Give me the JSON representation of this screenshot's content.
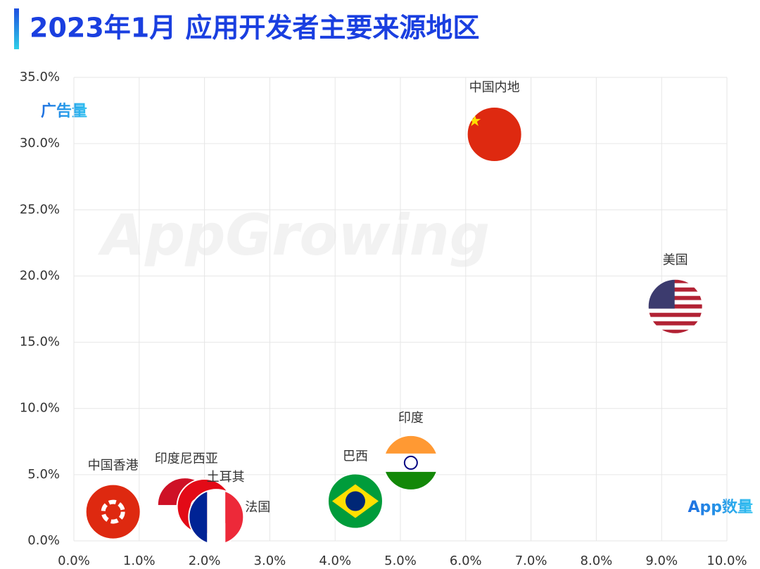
{
  "chart_data": {
    "type": "scatter",
    "title": "2023年1月 应用开发者主要来源地区",
    "x_label": "App数量",
    "y_label": "广告量",
    "watermark": "AppGrowing",
    "labels": [
      "中国内地",
      "美国",
      "印度",
      "巴西",
      "中国香港",
      "印度尼西亚",
      "土耳其",
      "法国"
    ],
    "x": [
      6.44,
      9.21,
      5.16,
      4.31,
      0.6,
      1.7,
      2.0,
      2.18
    ],
    "values": [
      30.7,
      17.7,
      5.9,
      3.0,
      2.2,
      2.7,
      2.6,
      1.8
    ],
    "xlim": [
      0,
      10
    ],
    "ylim": [
      0,
      35
    ],
    "xticks": [
      {
        "value": 0,
        "label": "0.0%"
      },
      {
        "value": 1,
        "label": "1.0%"
      },
      {
        "value": 2,
        "label": "2.0%"
      },
      {
        "value": 3,
        "label": "3.0%"
      },
      {
        "value": 4,
        "label": "4.0%"
      },
      {
        "value": 5,
        "label": "5.0%"
      },
      {
        "value": 6,
        "label": "6.0%"
      },
      {
        "value": 7,
        "label": "7.0%"
      },
      {
        "value": 8,
        "label": "8.0%"
      },
      {
        "value": 9,
        "label": "9.0%"
      },
      {
        "value": 10,
        "label": "10.0%"
      }
    ],
    "yticks": [
      {
        "value": 0,
        "label": "0.0%"
      },
      {
        "value": 5,
        "label": "5.0%"
      },
      {
        "value": 10,
        "label": "10.0%"
      },
      {
        "value": 15,
        "label": "15.0%"
      },
      {
        "value": 20,
        "label": "20.0%"
      },
      {
        "value": 25,
        "label": "25.0%"
      },
      {
        "value": 30,
        "label": "30.0%"
      },
      {
        "value": 35,
        "label": "35.0%"
      }
    ],
    "grid": true
  }
}
